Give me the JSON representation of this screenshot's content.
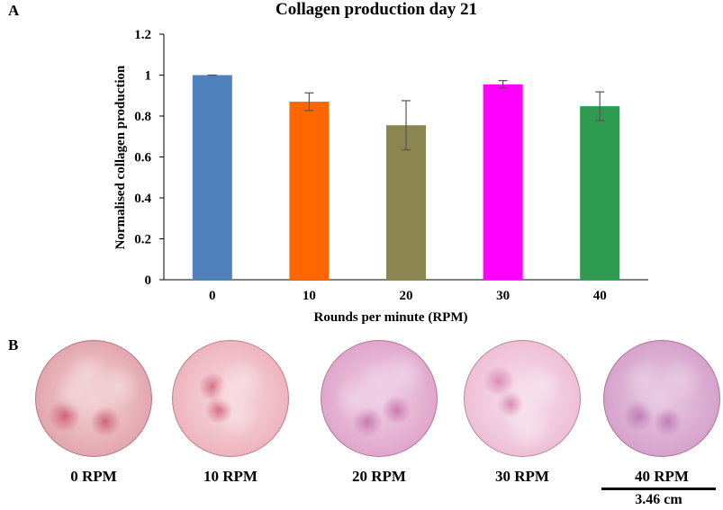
{
  "figure": {
    "panel_a_label": "A",
    "panel_b_label": "B"
  },
  "chart_data": {
    "type": "bar",
    "title": "Collagen production day 21",
    "xlabel": "Rounds per minute (RPM)",
    "ylabel": "Normalised collagen production",
    "categories": [
      "0",
      "10",
      "20",
      "30",
      "40"
    ],
    "values": [
      1.0,
      0.87,
      0.755,
      0.955,
      0.848
    ],
    "errors": [
      0.0,
      0.043,
      0.12,
      0.018,
      0.07
    ],
    "colors": [
      "#4f81bd",
      "#ff6600",
      "#8b8550",
      "#ff00ff",
      "#2e9b50"
    ],
    "ylim": [
      0,
      1.2
    ],
    "yticks": [
      0,
      0.2,
      0.4,
      0.6,
      0.8,
      1,
      1.2
    ],
    "ytick_labels": [
      "0",
      "0.2",
      "0.4",
      "0.6",
      "0.8",
      "1",
      "1.2"
    ],
    "grid": false,
    "legend": "none"
  },
  "samples": [
    {
      "label": "0 RPM",
      "base": "#e3a6ae",
      "spot": "#cf6678",
      "light": "#f2d3d6"
    },
    {
      "label": "10 RPM",
      "base": "#eeb4bf",
      "spot": "#d86f86",
      "light": "#f6dbe0"
    },
    {
      "label": "20 RPM",
      "base": "#e0a6cc",
      "spot": "#c97bb1",
      "light": "#efd0e4"
    },
    {
      "label": "30 RPM",
      "base": "#eebfd6",
      "spot": "#d98eb6",
      "light": "#f7e1ec"
    },
    {
      "label": "40 RPM",
      "base": "#d6a2cc",
      "spot": "#bf7db6",
      "light": "#e8c9e2"
    }
  ],
  "scale_bar": {
    "label": "3.46 cm"
  }
}
